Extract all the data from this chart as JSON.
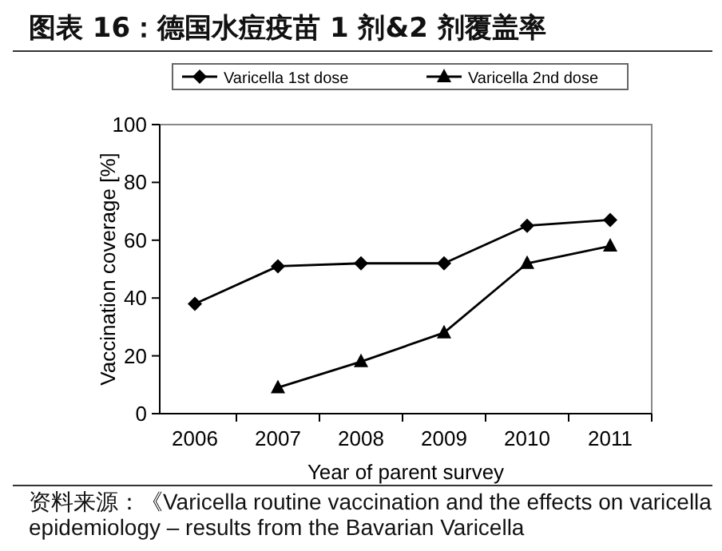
{
  "chart_data": {
    "type": "line",
    "title": "图表 16：德国水痘疫苗 1 剂&2 剂覆盖率",
    "xlabel": "Year of parent survey",
    "ylabel": "Vaccination coverage [%]",
    "categories": [
      "2006",
      "2007",
      "2008",
      "2009",
      "2010",
      "2011"
    ],
    "series": [
      {
        "name": "Varicella 1st dose",
        "color": "#000000",
        "marker": "diamond",
        "values": [
          38,
          51,
          52,
          52,
          65,
          67
        ]
      },
      {
        "name": "Varicella 2nd dose",
        "color": "#000000",
        "marker": "triangle",
        "values": [
          null,
          9,
          18,
          28,
          52,
          58
        ]
      }
    ],
    "ylim": [
      0,
      100
    ],
    "yticks": [
      0,
      20,
      40,
      60,
      80,
      100
    ],
    "grid": false,
    "legend": "top",
    "line_style": "solid",
    "annotations": [
      "资料来源：《Varicella routine vaccination and the effects on varicella epidemiology – results from the Bavarian Varicella"
    ]
  }
}
